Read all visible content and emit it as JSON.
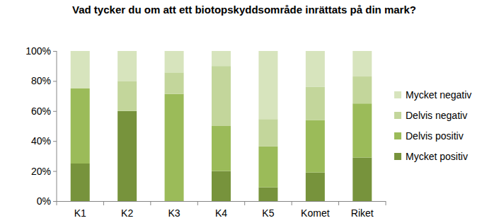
{
  "chart_data": {
    "type": "bar",
    "title": "Vad tycker du om att ett biotopskyddsområde inrättats på din mark?",
    "stacked": true,
    "categories": [
      "K1",
      "K2",
      "K3",
      "K4",
      "K5",
      "Komet",
      "Riket"
    ],
    "series": [
      {
        "name": "Mycket positiv",
        "color": "#77933c",
        "values": [
          25,
          60,
          0,
          20,
          9.1,
          19,
          29
        ]
      },
      {
        "name": "Delvis positiv",
        "color": "#9bbb59",
        "values": [
          50,
          0,
          71.4,
          30,
          27.3,
          35,
          36
        ]
      },
      {
        "name": "Delvis negativ",
        "color": "#c3d69b",
        "values": [
          0,
          20,
          14.3,
          40,
          18.2,
          22,
          18
        ]
      },
      {
        "name": "Mycket negativ",
        "color": "#d7e4bd",
        "values": [
          25,
          20,
          14.3,
          10,
          45.4,
          24,
          17
        ]
      }
    ],
    "ylim": [
      0,
      100
    ],
    "yticks": [
      {
        "value": 0,
        "label": "0%"
      },
      {
        "value": 20,
        "label": "20%"
      },
      {
        "value": 40,
        "label": "40%"
      },
      {
        "value": 60,
        "label": "60%"
      },
      {
        "value": 80,
        "label": "80%"
      },
      {
        "value": 100,
        "label": "100%"
      }
    ],
    "grid": false,
    "legend": "right"
  }
}
